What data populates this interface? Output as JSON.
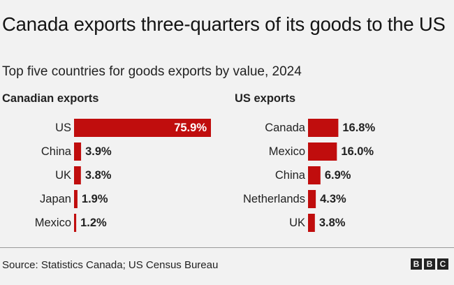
{
  "title": "Canada exports three-quarters of its goods to the US",
  "subtitle": "Top five countries for goods exports by value, 2024",
  "source": "Source: Statistics Canada; US Census Bureau",
  "logo": [
    "B",
    "B",
    "C"
  ],
  "colors": {
    "bar": "#c00d0d",
    "value_inside": "#ffffff",
    "value_outside": "#222222"
  },
  "chart_data": [
    {
      "type": "bar",
      "orientation": "horizontal",
      "title": "Canadian exports",
      "categories": [
        "US",
        "China",
        "UK",
        "Japan",
        "Mexico"
      ],
      "values": [
        75.9,
        3.9,
        3.8,
        1.9,
        1.2
      ],
      "labels": [
        "75.9%",
        "3.9%",
        "3.8%",
        "1.9%",
        "1.2%"
      ],
      "unit": "%",
      "xlim": [
        0,
        75.9
      ],
      "grid": false
    },
    {
      "type": "bar",
      "orientation": "horizontal",
      "title": "US exports",
      "categories": [
        "Canada",
        "Mexico",
        "China",
        "Netherlands",
        "UK"
      ],
      "values": [
        16.8,
        16.0,
        6.9,
        4.3,
        3.8
      ],
      "labels": [
        "16.8%",
        "16.0%",
        "6.9%",
        "4.3%",
        "3.8%"
      ],
      "unit": "%",
      "xlim": [
        0,
        75.9
      ],
      "grid": false
    }
  ]
}
